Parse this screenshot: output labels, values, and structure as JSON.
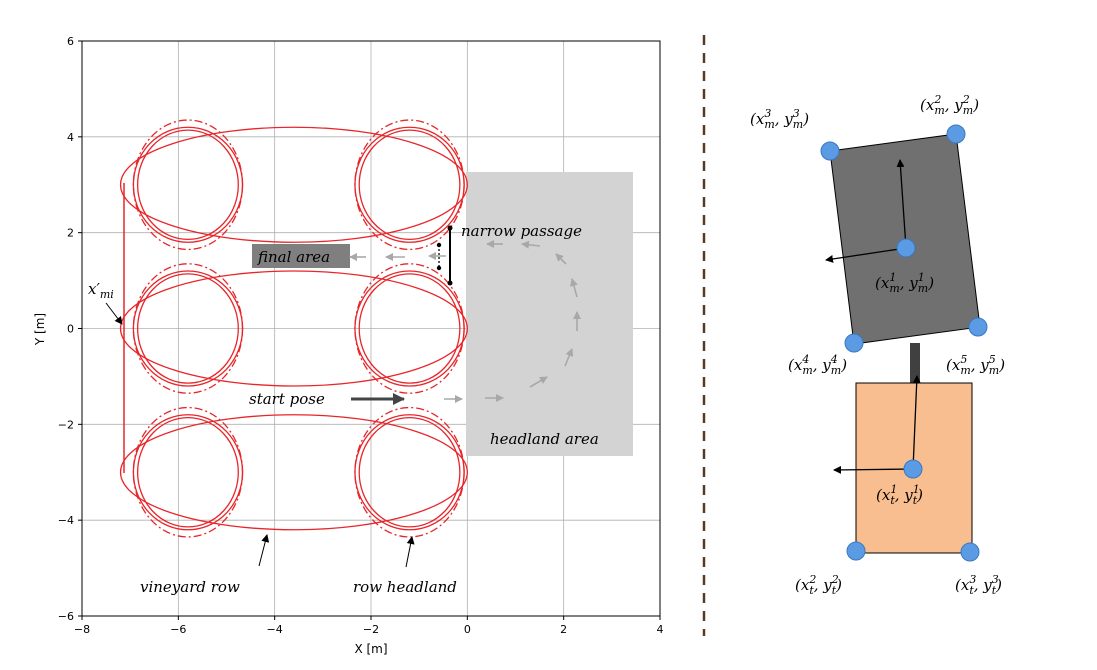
{
  "plot": {
    "xlabel": "X [m]",
    "ylabel": "Y [m]",
    "xlim": [
      -8,
      4
    ],
    "ylim": [
      -6,
      6
    ],
    "xticks": [
      -8,
      -6,
      -4,
      -2,
      0,
      2,
      4
    ],
    "yticks": [
      -6,
      -4,
      -2,
      0,
      2,
      4,
      6
    ],
    "xtick_labels": [
      "−8",
      "−6",
      "−4",
      "−2",
      "0",
      "2",
      "4"
    ],
    "ytick_labels": [
      "−6",
      "−4",
      "−2",
      "0",
      "2",
      "4",
      "6"
    ],
    "grid": true,
    "line_color": "#e8262a",
    "headland_fill": "#d3d3d3",
    "headland_label": "headland area",
    "narrow_passage_label": "narrow passage",
    "final_area_label": "final area",
    "start_pose_label": "start pose",
    "vineyard_row_label": "vineyard row",
    "row_headland_label": "row headland",
    "x_mi_label": "x′",
    "x_mi_sub": "mi"
  },
  "model": {
    "trailer_fill": "#f8be90",
    "tractor_fill": "#707070",
    "marker_fill": "#5b9be3",
    "tractor_points": [
      {
        "key": "m1",
        "base": "x",
        "sup": "1",
        "sub": "m",
        "base2": "y",
        "sup2": "1",
        "sub2": "m"
      },
      {
        "key": "m2",
        "base": "x",
        "sup": "2",
        "sub": "m",
        "base2": "y",
        "sup2": "2",
        "sub2": "m"
      },
      {
        "key": "m3",
        "base": "x",
        "sup": "3",
        "sub": "m",
        "base2": "y",
        "sup2": "3",
        "sub2": "m"
      },
      {
        "key": "m4",
        "base": "x",
        "sup": "4",
        "sub": "m",
        "base2": "y",
        "sup2": "4",
        "sub2": "m"
      },
      {
        "key": "m5",
        "base": "x",
        "sup": "5",
        "sub": "m",
        "base2": "y",
        "sup2": "5",
        "sub2": "m"
      }
    ],
    "trailer_points": [
      {
        "key": "t1",
        "base": "x",
        "sup": "1",
        "sub": "t",
        "base2": "y",
        "sup2": "1",
        "sub2": "t"
      },
      {
        "key": "t2",
        "base": "x",
        "sup": "2",
        "sub": "t",
        "base2": "y",
        "sup2": "2",
        "sub2": "t"
      },
      {
        "key": "t3",
        "base": "x",
        "sup": "3",
        "sub": "t",
        "base2": "y",
        "sup2": "3",
        "sub2": "t"
      }
    ]
  }
}
